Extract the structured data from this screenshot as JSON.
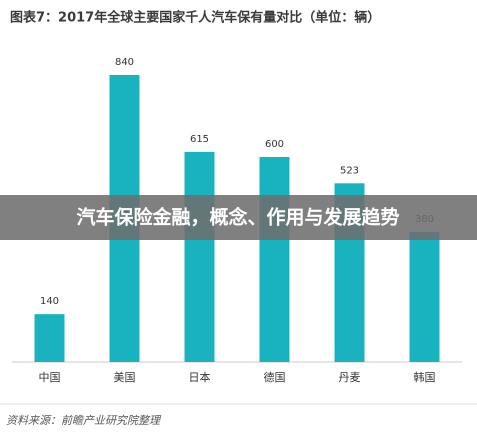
{
  "chart_data": {
    "type": "bar",
    "title": "图表7：2017年全球主要国家千人汽车保有量对比（单位：辆）",
    "categories": [
      "中国",
      "美国",
      "日本",
      "德国",
      "丹麦",
      "韩国"
    ],
    "values": [
      140,
      840,
      615,
      600,
      523,
      380
    ],
    "color": "#19b3bf",
    "ylim": [
      0,
      900
    ],
    "banner": "汽车保险金融，概念、作用与发展趋势",
    "source": "资料来源：前瞻产业研究院整理"
  }
}
